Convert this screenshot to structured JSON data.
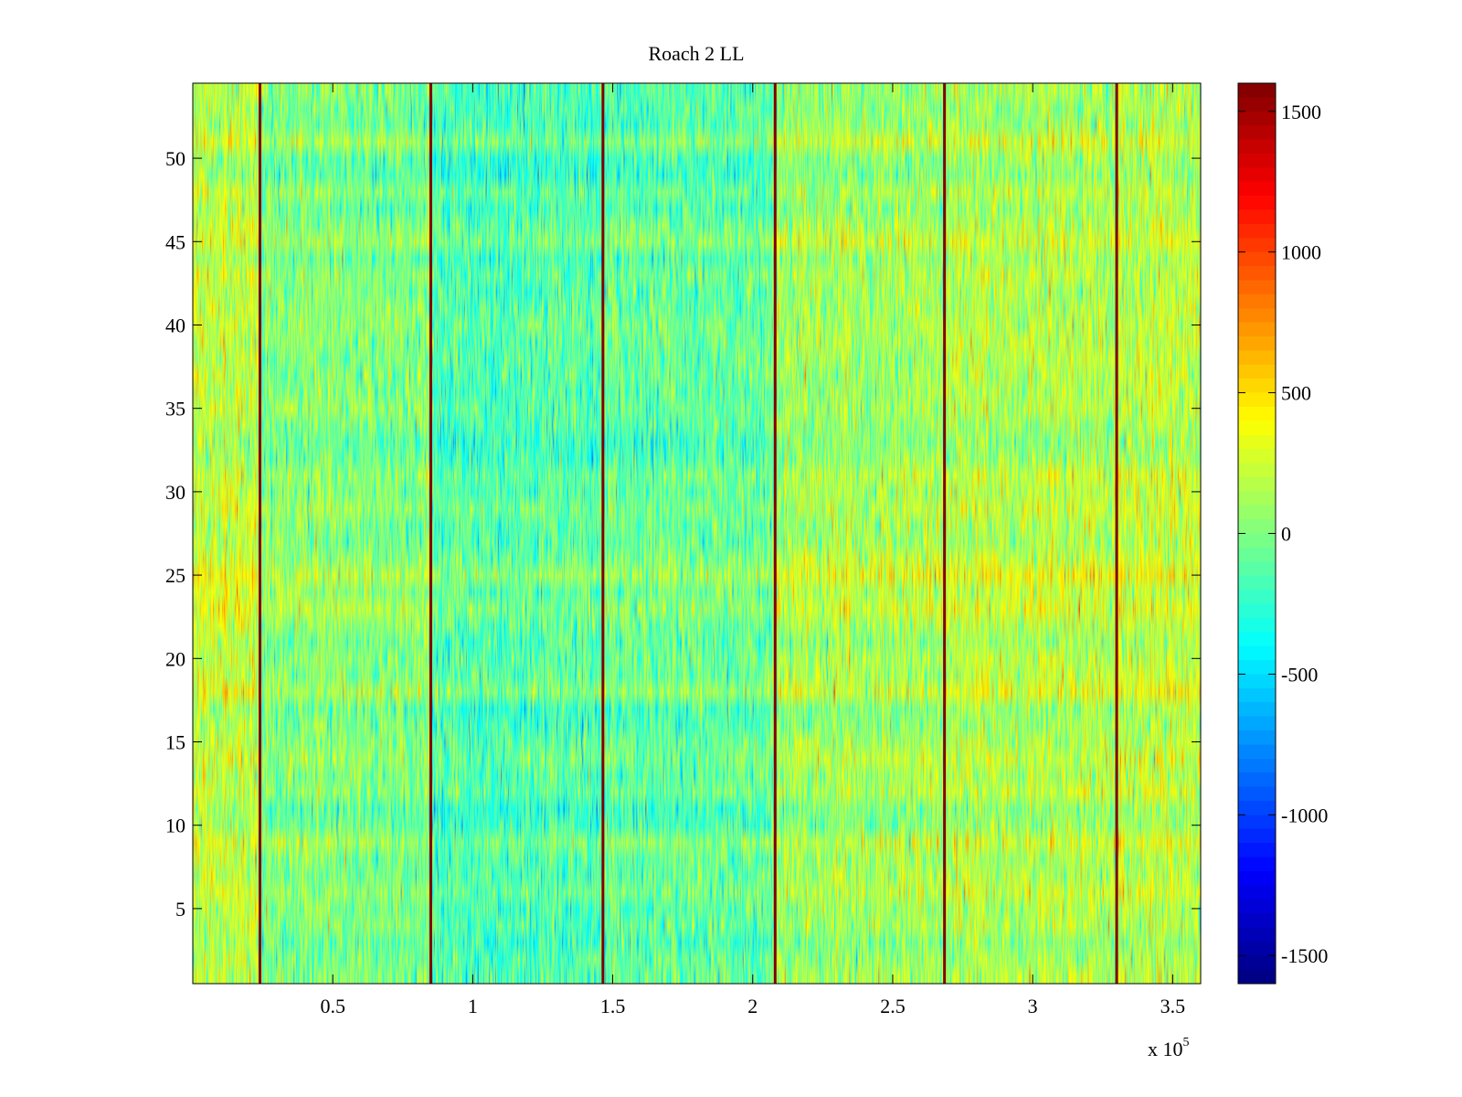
{
  "chart_data": {
    "type": "heatmap",
    "title": "Roach 2 LL",
    "xlabel": "",
    "ylabel": "",
    "x_multiplier": "x 10",
    "x_multiplier_exponent": "5",
    "xlim": [
      0,
      360000
    ],
    "ylim": [
      0.5,
      54.5
    ],
    "rows": 54,
    "xticks": [
      50000,
      100000,
      150000,
      200000,
      250000,
      300000,
      350000
    ],
    "xtick_labels": [
      "0.5",
      "1",
      "1.5",
      "2",
      "2.5",
      "3",
      "3.5"
    ],
    "yticks": [
      5,
      10,
      15,
      20,
      25,
      30,
      35,
      40,
      45,
      50
    ],
    "ytick_labels": [
      "5",
      "10",
      "15",
      "20",
      "25",
      "30",
      "35",
      "40",
      "45",
      "50"
    ],
    "clim": [
      -1600,
      1600
    ],
    "colormap": "jet",
    "colorbar_ticks": [
      1500,
      1000,
      500,
      0,
      -500,
      -1000,
      -1500
    ],
    "colorbar_tick_labels": [
      "1500",
      "1000",
      "500",
      "0",
      "-500",
      "-1000",
      "-1500"
    ],
    "vertical_bands": [
      {
        "x": 24000,
        "value": 1600
      },
      {
        "x": 85000,
        "value": 1600
      },
      {
        "x": 146500,
        "value": 1600
      },
      {
        "x": 208000,
        "value": 1600
      },
      {
        "x": 268500,
        "value": 1600
      },
      {
        "x": 330000,
        "value": 1600
      }
    ],
    "segment_means": [
      {
        "x_start": 0,
        "x_end": 24000,
        "mean": 200
      },
      {
        "x_start": 24000,
        "x_end": 85000,
        "mean": 0
      },
      {
        "x_start": 85000,
        "x_end": 146500,
        "mean": -150
      },
      {
        "x_start": 146500,
        "x_end": 208000,
        "mean": -100
      },
      {
        "x_start": 208000,
        "x_end": 268500,
        "mean": 100
      },
      {
        "x_start": 268500,
        "x_end": 330000,
        "mean": 150
      },
      {
        "x_start": 330000,
        "x_end": 360000,
        "mean": 200
      }
    ],
    "noise_std": 250
  }
}
